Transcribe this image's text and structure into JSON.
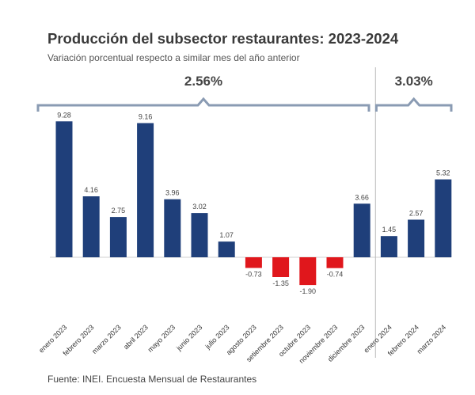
{
  "title": "Producción del subsector restaurantes: 2023-2024",
  "subtitle": "Variación porcentual respecto a similar mes del año anterior",
  "source": "Fuente: INEI. Encuesta Mensual de Restaurantes",
  "chart_data": {
    "type": "bar",
    "categories": [
      "enero 2023",
      "febrero 2023",
      "marzo 2023",
      "abril 2023",
      "mayo 2023",
      "junio 2023",
      "julio 2023",
      "agosto 2023",
      "setiembre 2023",
      "octubre 2023",
      "noviembre 2023",
      "diciembre 2023",
      "enero 2024",
      "febrero 2024",
      "marzo 2024"
    ],
    "values": [
      9.28,
      4.16,
      2.75,
      9.16,
      3.96,
      3.02,
      1.07,
      -0.73,
      -1.35,
      -1.9,
      -0.74,
      3.66,
      1.45,
      2.57,
      5.32
    ],
    "value_labels": [
      "9.28",
      "4.16",
      "2.75",
      "9.16",
      "3.96",
      "3.02",
      "1.07",
      "-0.73",
      "-1.35",
      "-1.90",
      "-0.74",
      "3.66",
      "1.45",
      "2.57",
      "5.32"
    ],
    "colors": {
      "positive": "#1f3f7a",
      "negative": "#e0171c",
      "bracket": "#8a9bb3",
      "divider": "#bbbbbb"
    },
    "groups": [
      {
        "label": "2.56%",
        "from": 0,
        "to": 11
      },
      {
        "label": "3.03%",
        "from": 12,
        "to": 14
      }
    ],
    "xlabel": "",
    "ylabel": ""
  }
}
